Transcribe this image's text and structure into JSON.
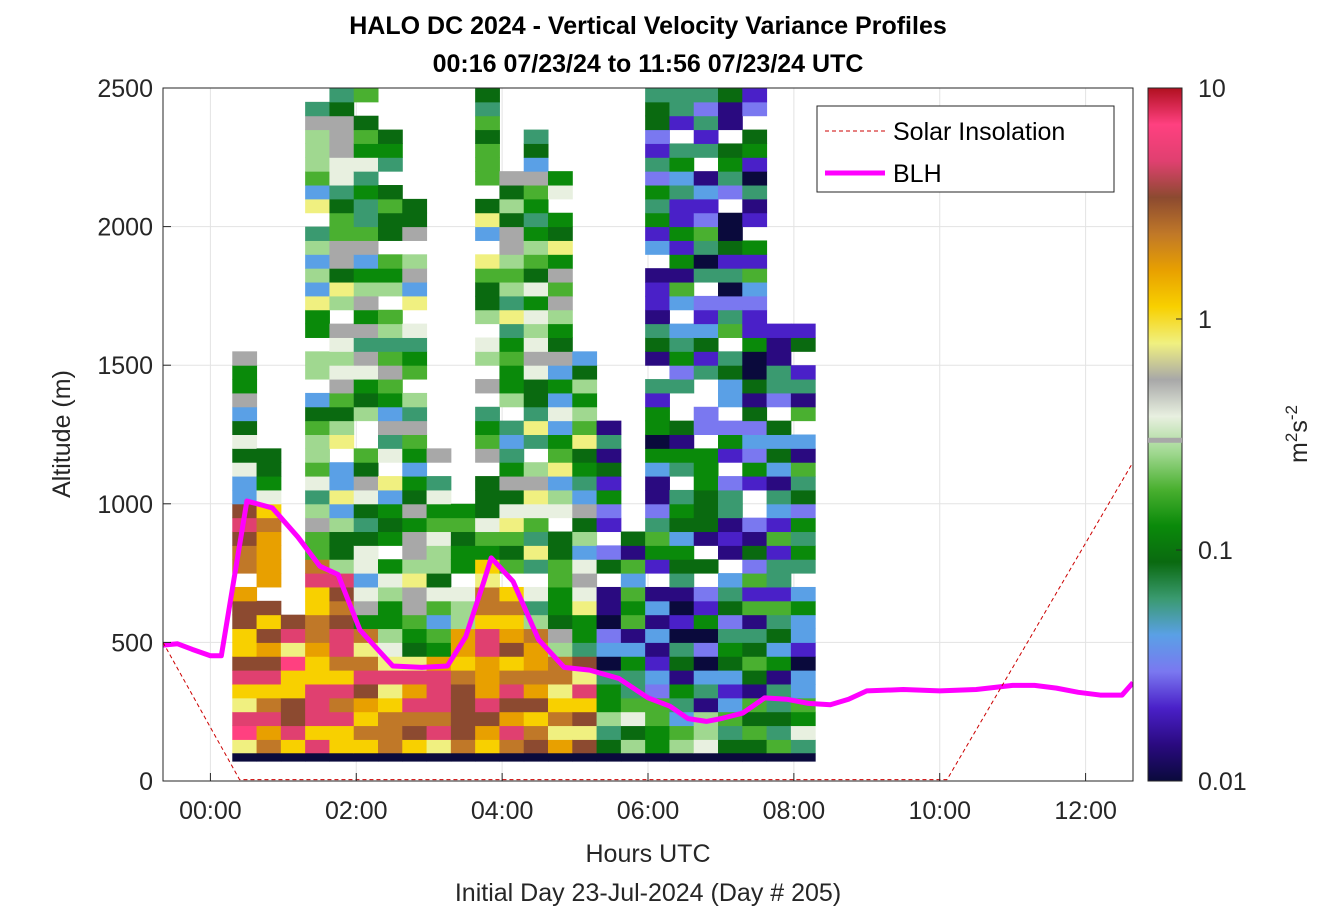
{
  "chart_data": {
    "type": "heatmap",
    "title": "HALO DC 2024 - Vertical Velocity Variance Profiles",
    "subtitle": "00:16 07/23/24 to 11:56 07/23/24  UTC",
    "xlabel": "Hours UTC",
    "ylabel": "Altitude (m)",
    "footer": "Initial Day 23-Jul-2024 (Day # 205)",
    "x_range_hours": [
      -0.65,
      12.65
    ],
    "y_range_m": [
      0,
      2500
    ],
    "x_ticks": [
      0,
      2,
      4,
      6,
      8,
      10,
      12
    ],
    "x_tick_labels": [
      "00:00",
      "02:00",
      "04:00",
      "06:00",
      "08:00",
      "10:00",
      "12:00"
    ],
    "y_ticks": [
      0,
      500,
      1000,
      1500,
      2000,
      2500
    ],
    "y_tick_labels": [
      "0",
      "500",
      "1000",
      "1500",
      "2000",
      "2500"
    ],
    "grid": true,
    "colorbar": {
      "scale": "log",
      "range": [
        0.01,
        10
      ],
      "ticks": [
        0.01,
        0.1,
        1,
        10
      ],
      "tick_labels": [
        "0.01",
        "0.1",
        "1",
        "10"
      ],
      "label_base": "m",
      "label_exp1": "2",
      "label_mid": "s",
      "label_exp2": "-2",
      "colors": [
        "#0a0a3c",
        "#2a0a80",
        "#4a20c8",
        "#7a78f0",
        "#5aa0e6",
        "#3a9a70",
        "#0a6a10",
        "#0a8a0a",
        "#4ab030",
        "#a0d890",
        "#e8f0e0",
        "#a8a8a8",
        "#f0f080",
        "#f8d000",
        "#e8a000",
        "#c07828",
        "#8c4a30",
        "#e04070",
        "#ff4080",
        "#b01020"
      ],
      "marker_value": 0.3
    },
    "legend": {
      "placement": "top-right",
      "entries": [
        {
          "label": "Solar Insolation",
          "style": "dashed",
          "color": "#cc0000"
        },
        {
          "label": "BLH",
          "style": "solid",
          "color": "#ff00ff"
        }
      ]
    },
    "series": [
      {
        "name": "BLH",
        "color": "#ff00ff",
        "x": [
          -0.65,
          -0.45,
          -0.25,
          0.0,
          0.15,
          0.5,
          0.85,
          1.2,
          1.5,
          1.75,
          2.05,
          2.5,
          2.9,
          3.25,
          3.5,
          3.75,
          3.85,
          4.15,
          4.5,
          4.85,
          5.2,
          5.6,
          6.0,
          6.3,
          6.55,
          6.8,
          7.0,
          7.3,
          7.6,
          7.9,
          8.2,
          8.5,
          8.75,
          9.0,
          9.5,
          10.0,
          10.5,
          11.0,
          11.3,
          11.6,
          11.9,
          12.2,
          12.5,
          12.65
        ],
        "y": [
          490,
          495,
          475,
          452,
          452,
          1010,
          985,
          880,
          775,
          745,
          545,
          415,
          410,
          415,
          520,
          720,
          805,
          720,
          510,
          410,
          400,
          370,
          300,
          270,
          225,
          215,
          225,
          245,
          300,
          295,
          280,
          275,
          295,
          325,
          330,
          325,
          330,
          345,
          345,
          335,
          320,
          310,
          310,
          355
        ]
      },
      {
        "name": "Solar Insolation",
        "color": "#cc0000",
        "x": [
          -0.65,
          0.4,
          0.4,
          10.1,
          10.1,
          12.65
        ],
        "y": [
          500,
          5,
          5,
          5,
          5,
          1150
        ]
      }
    ],
    "cells": {
      "x_start_hours": 0.3,
      "x_step_hours": 0.333,
      "columns": 24,
      "y_step_m": 50,
      "blanking_value": 0.01,
      "blanking_height_m": 100,
      "top_m_by_column": [
        1550,
        1200,
        600,
        2450,
        2500,
        2500,
        2350,
        2100,
        1250,
        1050,
        2500,
        2200,
        2350,
        2200,
        1550,
        1300,
        900,
        2500,
        2500,
        2500,
        2500,
        2500,
        1650,
        1650
      ]
    }
  }
}
